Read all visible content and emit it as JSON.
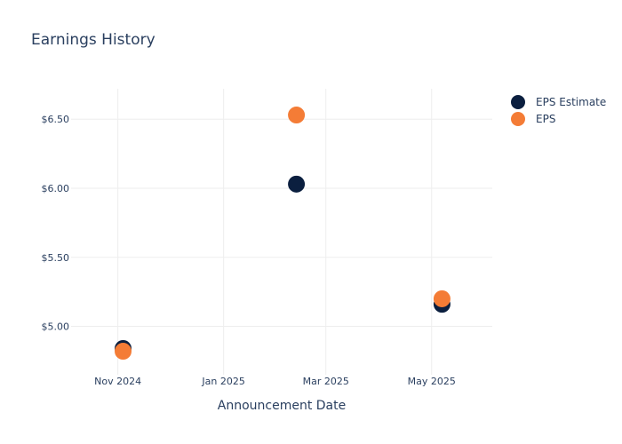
{
  "chart_data": {
    "type": "scatter",
    "title": "Earnings History",
    "xlabel": "Announcement Date",
    "ylabel": "",
    "x_range": [
      "2024-10-05",
      "2025-06-05"
    ],
    "ylim": [
      4.65,
      6.72
    ],
    "x_ticks": [
      {
        "date": "2024-11-01",
        "label": "Nov 2024"
      },
      {
        "date": "2025-01-01",
        "label": "Jan 2025"
      },
      {
        "date": "2025-03-01",
        "label": "Mar 2025"
      },
      {
        "date": "2025-05-01",
        "label": "May 2025"
      }
    ],
    "y_ticks": [
      {
        "value": 5.0,
        "label": "$5.00"
      },
      {
        "value": 5.5,
        "label": "$5.50"
      },
      {
        "value": 6.0,
        "label": "$6.00"
      },
      {
        "value": 6.5,
        "label": "$6.50"
      }
    ],
    "grid": true,
    "legend_position": "top-right",
    "series": [
      {
        "name": "EPS Estimate",
        "color": "#0b1f3f",
        "points": [
          {
            "x": "2024-11-04",
            "y": 4.84
          },
          {
            "x": "2025-02-12",
            "y": 6.03
          },
          {
            "x": "2025-05-07",
            "y": 5.16
          }
        ]
      },
      {
        "name": "EPS",
        "color": "#f47c36",
        "points": [
          {
            "x": "2024-11-04",
            "y": 4.82
          },
          {
            "x": "2025-02-12",
            "y": 6.53
          },
          {
            "x": "2025-05-07",
            "y": 5.2
          }
        ]
      }
    ]
  }
}
